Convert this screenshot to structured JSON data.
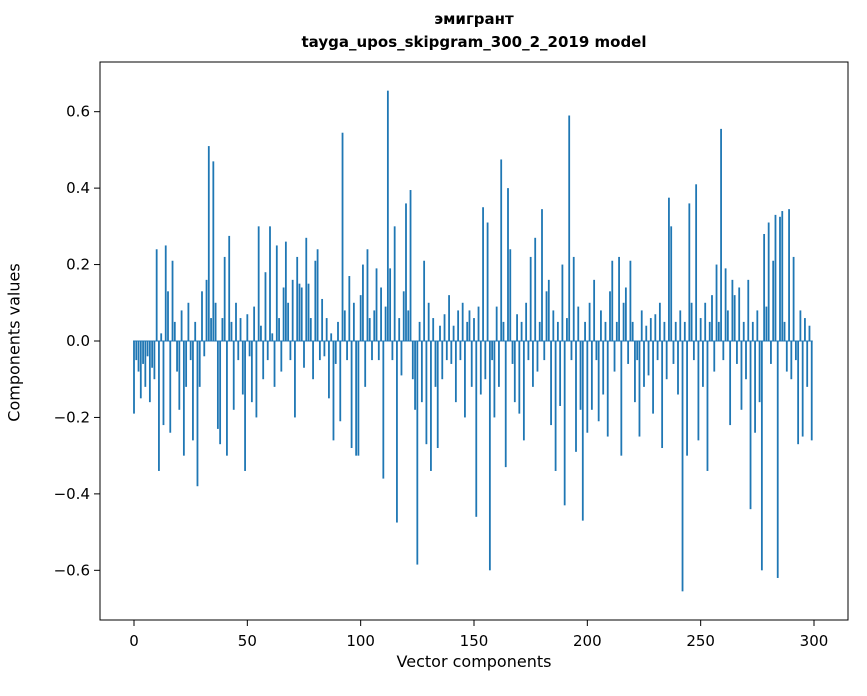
{
  "figure": {
    "title_line1": "эмигрант",
    "title_line2": "tayga_upos_skipgram_300_2_2019 model",
    "xlabel": "Vector components",
    "ylabel": "Components values"
  },
  "chart_data": {
    "type": "bar",
    "title": "эмигрант — tayga_upos_skipgram_300_2_2019 model",
    "xlabel": "Vector components",
    "ylabel": "Components values",
    "bar_color": "#1f77b4",
    "grid": false,
    "legend": "none",
    "xlim": [
      -15,
      315
    ],
    "ylim": [
      -0.73,
      0.73
    ],
    "xticks": [
      0,
      50,
      100,
      150,
      200,
      250,
      300
    ],
    "yticks": [
      -0.6,
      -0.4,
      -0.2,
      0.0,
      0.2,
      0.4,
      0.6
    ],
    "ytick_labels": [
      "−0.6",
      "−0.4",
      "−0.2",
      "0.0",
      "0.2",
      "0.4",
      "0.6"
    ],
    "n_components": 300,
    "values": [
      -0.19,
      -0.05,
      -0.08,
      -0.15,
      -0.06,
      -0.12,
      -0.04,
      -0.16,
      -0.07,
      -0.1,
      0.24,
      -0.34,
      0.02,
      -0.22,
      0.25,
      0.13,
      -0.24,
      0.21,
      0.05,
      -0.08,
      -0.18,
      0.08,
      -0.3,
      -0.12,
      0.1,
      -0.05,
      -0.26,
      0.05,
      -0.38,
      -0.12,
      0.13,
      -0.04,
      0.16,
      0.51,
      0.06,
      0.47,
      0.1,
      -0.23,
      -0.27,
      0.06,
      0.22,
      -0.3,
      0.275,
      0.05,
      -0.18,
      0.1,
      -0.05,
      0.06,
      -0.14,
      -0.34,
      0.07,
      -0.04,
      -0.16,
      0.09,
      -0.2,
      0.3,
      0.04,
      -0.1,
      0.18,
      -0.05,
      0.3,
      0.02,
      -0.12,
      0.25,
      0.06,
      -0.08,
      0.14,
      0.26,
      0.1,
      -0.05,
      0.16,
      -0.2,
      0.22,
      0.15,
      0.14,
      -0.07,
      0.27,
      0.15,
      0.06,
      -0.1,
      0.21,
      0.24,
      -0.05,
      0.11,
      -0.04,
      0.06,
      -0.15,
      0.02,
      -0.26,
      -0.06,
      0.05,
      -0.21,
      0.545,
      0.08,
      -0.05,
      0.17,
      -0.28,
      0.1,
      -0.3,
      -0.3,
      0.12,
      0.2,
      -0.12,
      0.24,
      0.06,
      -0.05,
      0.08,
      0.19,
      -0.05,
      0.14,
      -0.36,
      0.09,
      0.655,
      0.19,
      -0.05,
      0.3,
      -0.475,
      0.06,
      -0.09,
      0.13,
      0.36,
      0.08,
      0.395,
      -0.1,
      -0.18,
      -0.585,
      0.05,
      -0.16,
      0.21,
      -0.27,
      0.1,
      -0.34,
      0.06,
      -0.12,
      -0.28,
      0.04,
      -0.1,
      0.07,
      -0.05,
      0.12,
      -0.06,
      0.04,
      -0.16,
      0.08,
      -0.05,
      0.1,
      -0.2,
      0.05,
      0.08,
      -0.12,
      0.06,
      -0.46,
      0.09,
      -0.14,
      0.35,
      -0.1,
      0.31,
      -0.6,
      -0.05,
      -0.2,
      0.09,
      -0.12,
      0.475,
      0.05,
      -0.33,
      0.4,
      0.24,
      -0.06,
      -0.16,
      0.07,
      -0.19,
      0.05,
      -0.26,
      0.1,
      -0.05,
      0.22,
      -0.12,
      0.27,
      -0.08,
      0.05,
      0.345,
      -0.05,
      0.13,
      0.16,
      -0.22,
      0.08,
      -0.34,
      0.05,
      -0.17,
      0.2,
      -0.43,
      0.06,
      0.59,
      -0.05,
      0.22,
      -0.29,
      0.09,
      -0.18,
      -0.47,
      0.05,
      -0.24,
      0.1,
      -0.18,
      0.16,
      -0.05,
      -0.21,
      0.08,
      -0.14,
      0.05,
      -0.25,
      0.13,
      0.21,
      -0.08,
      0.05,
      0.22,
      -0.3,
      0.1,
      0.14,
      -0.06,
      0.21,
      0.05,
      -0.16,
      -0.05,
      -0.25,
      0.08,
      -0.12,
      0.04,
      -0.09,
      0.06,
      -0.19,
      0.07,
      -0.05,
      0.1,
      -0.28,
      0.05,
      -0.1,
      0.375,
      0.3,
      -0.06,
      0.05,
      -0.14,
      0.08,
      -0.655,
      0.05,
      -0.3,
      0.36,
      0.1,
      -0.05,
      0.41,
      -0.26,
      0.06,
      -0.12,
      0.1,
      -0.34,
      0.05,
      0.12,
      -0.08,
      0.2,
      0.05,
      0.555,
      -0.05,
      0.19,
      0.08,
      -0.22,
      0.16,
      0.12,
      -0.06,
      0.14,
      -0.18,
      0.05,
      -0.1,
      0.16,
      -0.44,
      0.05,
      -0.24,
      0.08,
      -0.16,
      -0.6,
      0.28,
      0.09,
      0.31,
      -0.06,
      0.21,
      0.33,
      -0.62,
      0.325,
      0.34,
      0.05,
      -0.08,
      0.345,
      -0.1,
      0.22,
      -0.05,
      -0.27,
      0.08,
      -0.25,
      0.06,
      -0.12,
      0.04,
      -0.26
    ]
  }
}
